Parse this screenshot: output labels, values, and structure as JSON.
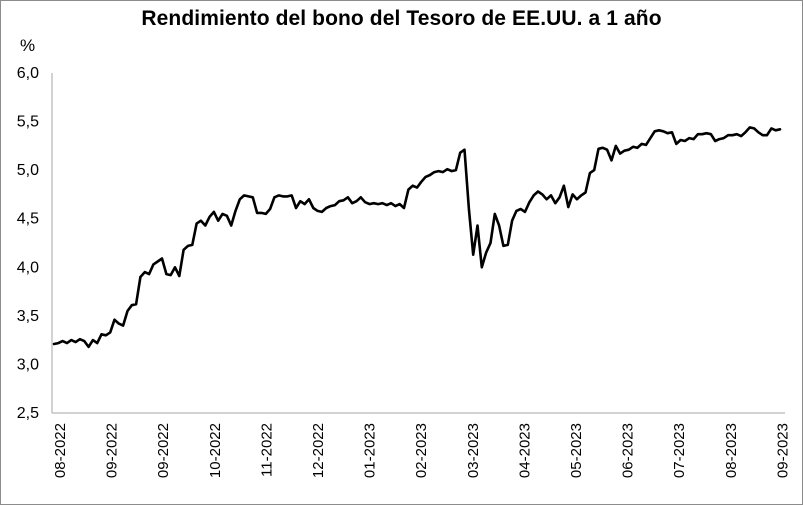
{
  "chart_data": {
    "type": "line",
    "title": "Rendimiento del bono del Tesoro de EE.UU. a 1 año",
    "ylabel": "%",
    "xlabel": "",
    "ylim": [
      2.5,
      6.0
    ],
    "yticks": [
      "2,5",
      "3,0",
      "3,5",
      "4,0",
      "4,5",
      "5,0",
      "5,5",
      "6,0"
    ],
    "xticks": [
      "08-2022",
      "09-2022",
      "09-2022",
      "10-2022",
      "11-2022",
      "12-2022",
      "01-2023",
      "02-2023",
      "03-2023",
      "04-2023",
      "05-2023",
      "06-2023",
      "07-2023",
      "08-2023",
      "09-2023"
    ],
    "grid": false,
    "legend": "none",
    "line_color": "#000000",
    "series": [
      {
        "values": [
          3.21,
          3.22,
          3.24,
          3.22,
          3.25,
          3.23,
          3.26,
          3.24,
          3.18,
          3.25,
          3.22,
          3.31,
          3.3,
          3.33,
          3.46,
          3.42,
          3.4,
          3.55,
          3.61,
          3.62,
          3.9,
          3.95,
          3.93,
          4.03,
          4.06,
          4.09,
          3.93,
          3.92,
          4.0,
          3.91,
          4.18,
          4.22,
          4.23,
          4.45,
          4.48,
          4.43,
          4.52,
          4.57,
          4.48,
          4.55,
          4.53,
          4.43,
          4.58,
          4.7,
          4.74,
          4.73,
          4.72,
          4.56,
          4.56,
          4.55,
          4.6,
          4.72,
          4.74,
          4.73,
          4.73,
          4.74,
          4.61,
          4.68,
          4.65,
          4.7,
          4.61,
          4.58,
          4.57,
          4.61,
          4.63,
          4.64,
          4.68,
          4.69,
          4.72,
          4.66,
          4.68,
          4.72,
          4.67,
          4.65,
          4.66,
          4.65,
          4.66,
          4.64,
          4.66,
          4.63,
          4.65,
          4.61,
          4.8,
          4.84,
          4.82,
          4.88,
          4.93,
          4.95,
          4.98,
          4.99,
          4.98,
          5.01,
          4.99,
          5.0,
          5.18,
          5.21,
          4.6,
          4.13,
          4.43,
          4.0,
          4.15,
          4.25,
          4.55,
          4.43,
          4.22,
          4.23,
          4.48,
          4.58,
          4.6,
          4.57,
          4.67,
          4.74,
          4.78,
          4.75,
          4.7,
          4.74,
          4.66,
          4.72,
          4.84,
          4.62,
          4.75,
          4.7,
          4.74,
          4.77,
          4.97,
          5.0,
          5.22,
          5.23,
          5.21,
          5.1,
          5.25,
          5.17,
          5.2,
          5.21,
          5.24,
          5.23,
          5.27,
          5.26,
          5.33,
          5.4,
          5.41,
          5.4,
          5.38,
          5.39,
          5.27,
          5.31,
          5.3,
          5.33,
          5.32,
          5.37,
          5.37,
          5.38,
          5.37,
          5.3,
          5.32,
          5.33,
          5.36,
          5.36,
          5.37,
          5.35,
          5.39,
          5.44,
          5.43,
          5.39,
          5.36,
          5.36,
          5.43,
          5.41,
          5.42
        ]
      }
    ]
  }
}
